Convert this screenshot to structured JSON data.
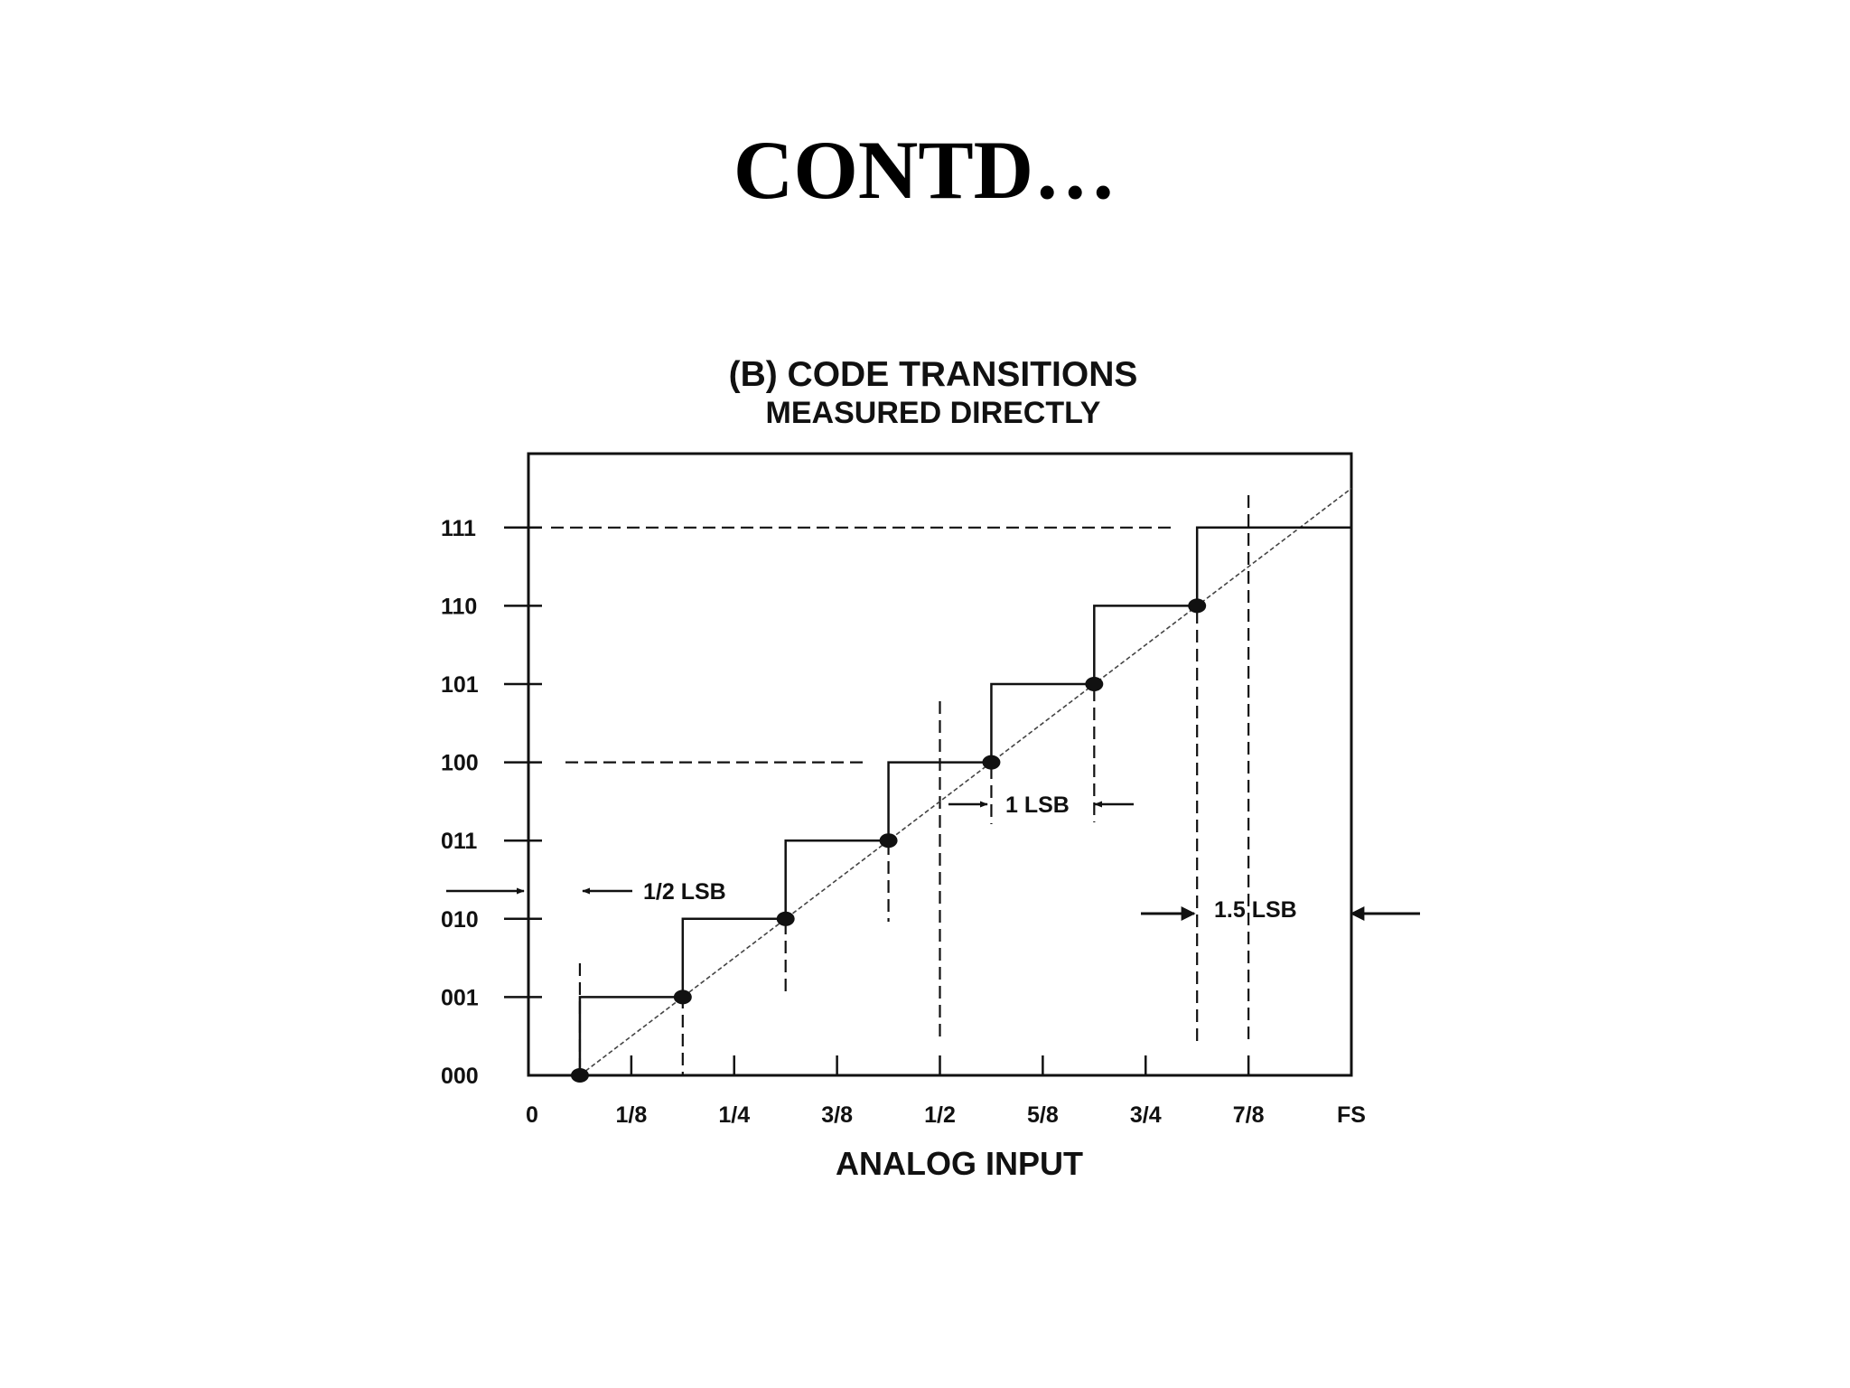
{
  "slide": {
    "title": "CONTD…"
  },
  "chart_data": {
    "type": "line",
    "title": "(B) CODE TRANSITIONS",
    "subtitle": "MEASURED DIRECTLY",
    "xlabel": "ANALOG INPUT",
    "ylabel": "",
    "x_tick_labels": [
      "0",
      "1/8",
      "1/4",
      "3/8",
      "1/2",
      "5/8",
      "3/4",
      "7/8",
      "FS"
    ],
    "y_tick_labels": [
      "000",
      "001",
      "010",
      "011",
      "100",
      "101",
      "110",
      "111"
    ],
    "xlim": [
      0,
      1
    ],
    "ylim": [
      0,
      8
    ],
    "grid": false,
    "series": [
      {
        "kind": "staircase",
        "x": [
          0.0625,
          0.1875,
          0.3125,
          0.4375,
          0.5625,
          0.6875,
          0.8125
        ],
        "y": [
          0,
          1,
          2,
          3,
          4,
          5,
          6
        ],
        "marker": "dot"
      },
      {
        "kind": "ideal-diagonal",
        "x": [
          0.0625,
          1.0
        ],
        "y": [
          0,
          7.5
        ]
      }
    ],
    "annotations": [
      {
        "text": "1/2 LSB"
      },
      {
        "text": "1 LSB"
      },
      {
        "text": "1.5 LSB"
      }
    ]
  }
}
